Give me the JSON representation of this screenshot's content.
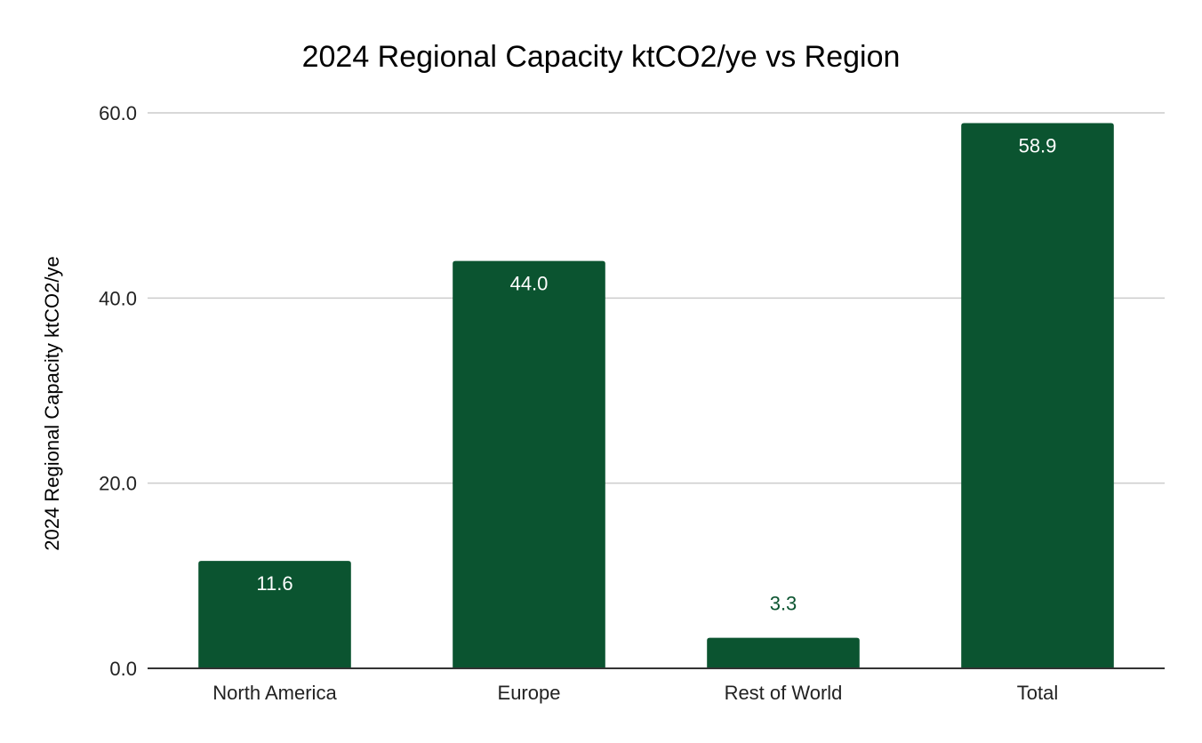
{
  "chart_data": {
    "type": "bar",
    "title": "2024 Regional Capacity ktCO2/ye vs Region",
    "xlabel": "",
    "ylabel": "2024 Regional Capacity ktCO2/ye",
    "categories": [
      "North America",
      "Europe",
      "Rest of World",
      "Total"
    ],
    "values": [
      11.6,
      44.0,
      3.3,
      58.9
    ],
    "data_labels": [
      "11.6",
      "44.0",
      "3.3",
      "58.9"
    ],
    "ylim": [
      0,
      60
    ],
    "yticks": [
      0,
      20,
      40,
      60
    ],
    "ytick_labels": [
      "0.0",
      "20.0",
      "40.0",
      "60.0"
    ],
    "grid": true,
    "legend": "none",
    "colors": {
      "bar": "#0b5430",
      "label_inside": "#ffffff",
      "label_outside": "#0b5430",
      "grid": "#cccccc",
      "axis": "#333333"
    }
  }
}
